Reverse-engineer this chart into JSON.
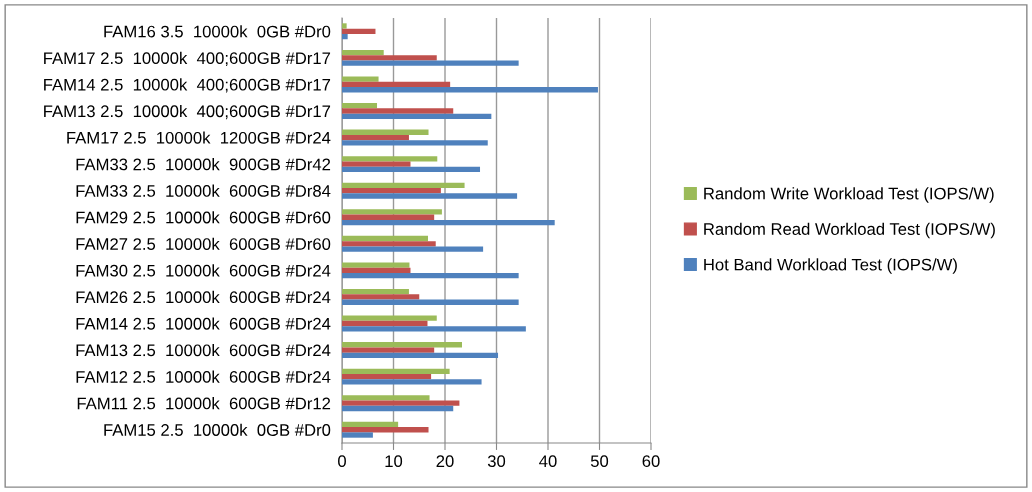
{
  "chart_data": {
    "type": "bar",
    "orientation": "horizontal",
    "categories": [
      "FAM16 3.5  10000k  0GB #Dr0",
      "FAM17 2.5  10000k  400;600GB #Dr17",
      "FAM14 2.5  10000k  400;600GB #Dr17",
      "FAM13 2.5  10000k  400;600GB #Dr17",
      "FAM17 2.5  10000k  1200GB #Dr24",
      "FAM33 2.5  10000k  900GB #Dr42",
      "FAM33 2.5  10000k  600GB #Dr84",
      "FAM29 2.5  10000k  600GB #Dr60",
      "FAM27 2.5  10000k  600GB #Dr60",
      "FAM30 2.5  10000k  600GB #Dr24",
      "FAM26 2.5  10000k  600GB #Dr24",
      "FAM14 2.5  10000k  600GB #Dr24",
      "FAM13 2.5  10000k  600GB #Dr24",
      "FAM12 2.5  10000k  600GB #Dr24",
      "FAM11 2.5  10000k  600GB #Dr12",
      "FAM15 2.5  10000k  0GB #Dr0"
    ],
    "series": [
      {
        "name": "Random Write Workload Test (IOPS/W)",
        "color": "#9bbb59",
        "values": [
          0.9,
          8.1,
          7.1,
          6.8,
          16.8,
          18.5,
          23.8,
          19.4,
          16.7,
          13.1,
          13.0,
          18.4,
          23.3,
          20.9,
          17.0,
          10.9
        ]
      },
      {
        "name": "Random Read Workload Test (IOPS/W)",
        "color": "#c0504d",
        "values": [
          6.5,
          18.4,
          21.0,
          21.6,
          13.0,
          13.3,
          19.2,
          17.9,
          18.2,
          13.3,
          15.0,
          16.6,
          17.9,
          17.3,
          22.8,
          16.8
        ]
      },
      {
        "name": "Hot Band Workload Test (IOPS/W)",
        "color": "#4f81bd",
        "values": [
          1.1,
          34.3,
          49.7,
          29.0,
          28.3,
          26.8,
          34.0,
          41.3,
          27.4,
          34.3,
          34.3,
          35.7,
          30.3,
          27.1,
          21.6,
          6.0
        ]
      }
    ],
    "xlim": [
      0,
      60
    ],
    "xticks": [
      0,
      10,
      20,
      30,
      40,
      50,
      60
    ],
    "grid": "x",
    "legend": "right"
  }
}
